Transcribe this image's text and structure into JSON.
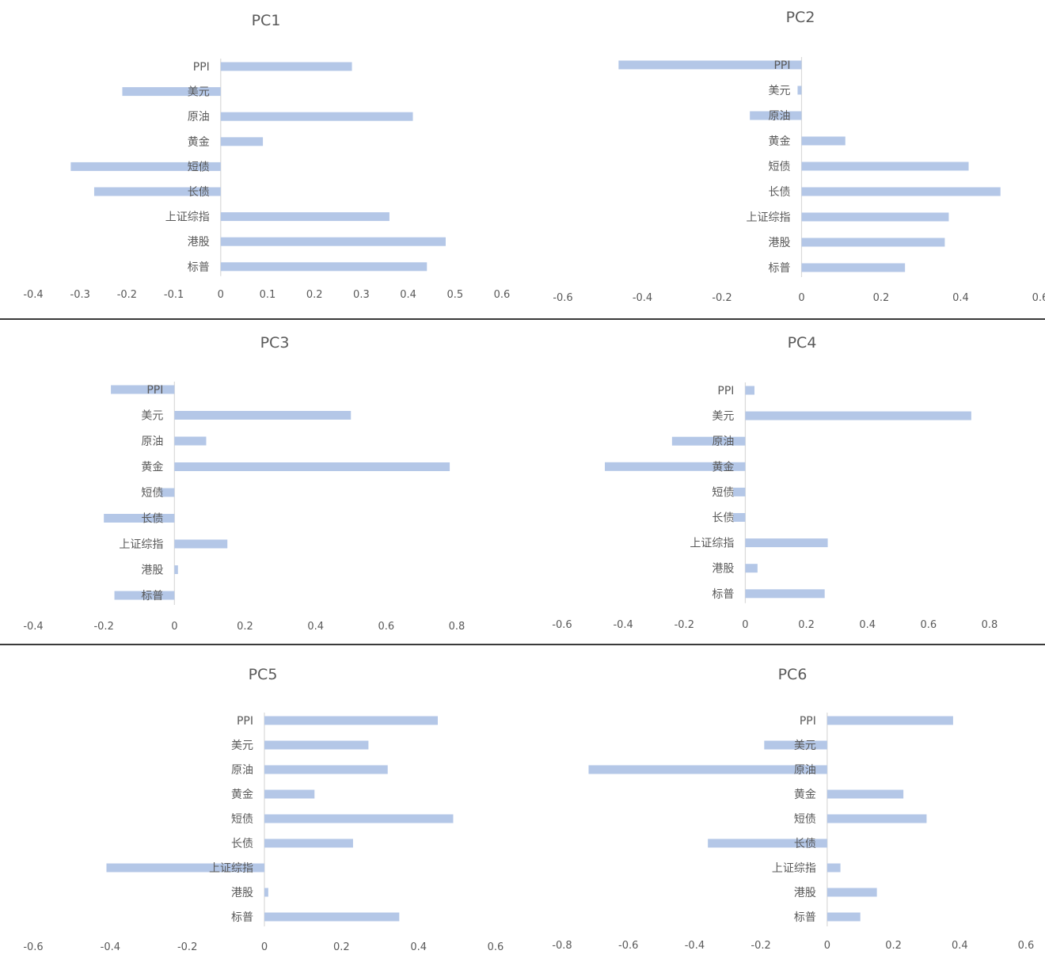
{
  "chart_data": [
    {
      "type": "bar",
      "orientation": "horizontal",
      "title": "PC1",
      "categories": [
        "PPI",
        "美元",
        "原油",
        "黄金",
        "短债",
        "长债",
        "上证综指",
        "港股",
        "标普"
      ],
      "values": [
        0.28,
        -0.21,
        0.41,
        0.09,
        -0.32,
        -0.27,
        0.36,
        0.48,
        0.44
      ],
      "xlim": [
        -0.4,
        0.6
      ],
      "xticks": [
        "-0.4",
        "-0.3",
        "-0.2",
        "-0.1",
        "0",
        "0.1",
        "0.2",
        "0.3",
        "0.4",
        "0.5",
        "0.6"
      ],
      "grid": false,
      "legend": "none",
      "bar_color": "#b4c7e7"
    },
    {
      "type": "bar",
      "orientation": "horizontal",
      "title": "PC2",
      "categories": [
        "PPI",
        "美元",
        "原油",
        "黄金",
        "短债",
        "长债",
        "上证综指",
        "港股",
        "标普"
      ],
      "values": [
        -0.46,
        -0.01,
        -0.13,
        0.11,
        0.42,
        0.5,
        0.37,
        0.36,
        0.26
      ],
      "xlim": [
        -0.6,
        0.6
      ],
      "xticks": [
        "-0.6",
        "-0.4",
        "-0.2",
        "0",
        "0.2",
        "0.4",
        "0.6"
      ],
      "grid": false,
      "legend": "none",
      "bar_color": "#b4c7e7"
    },
    {
      "type": "bar",
      "orientation": "horizontal",
      "title": "PC3",
      "categories": [
        "PPI",
        "美元",
        "原油",
        "黄金",
        "短债",
        "长债",
        "上证综指",
        "港股",
        "标普"
      ],
      "values": [
        -0.18,
        0.5,
        0.09,
        0.78,
        -0.04,
        -0.2,
        0.15,
        0.01,
        -0.17
      ],
      "xlim": [
        -0.4,
        0.8
      ],
      "xticks": [
        "-0.4",
        "-0.2",
        "0",
        "0.2",
        "0.4",
        "0.6",
        "0.8"
      ],
      "grid": false,
      "legend": "none",
      "bar_color": "#b4c7e7"
    },
    {
      "type": "bar",
      "orientation": "horizontal",
      "title": "PC4",
      "categories": [
        "PPI",
        "美元",
        "原油",
        "黄金",
        "短债",
        "长债",
        "上证综指",
        "港股",
        "标普"
      ],
      "values": [
        0.03,
        0.74,
        -0.24,
        -0.46,
        -0.04,
        -0.04,
        0.27,
        0.04,
        0.26
      ],
      "xlim": [
        -0.6,
        0.8
      ],
      "xticks": [
        "-0.6",
        "-0.4",
        "-0.2",
        "0",
        "0.2",
        "0.4",
        "0.6",
        "0.8"
      ],
      "grid": false,
      "legend": "none",
      "bar_color": "#b4c7e7"
    },
    {
      "type": "bar",
      "orientation": "horizontal",
      "title": "PC5",
      "categories": [
        "PPI",
        "美元",
        "原油",
        "黄金",
        "短债",
        "长债",
        "上证综指",
        "港股",
        "标普"
      ],
      "values": [
        0.45,
        0.27,
        0.32,
        0.13,
        0.49,
        0.23,
        -0.41,
        0.01,
        0.35
      ],
      "xlim": [
        -0.6,
        0.6
      ],
      "xticks": [
        "-0.6",
        "-0.4",
        "-0.2",
        "0",
        "0.2",
        "0.4",
        "0.6"
      ],
      "grid": false,
      "legend": "none",
      "bar_color": "#b4c7e7"
    },
    {
      "type": "bar",
      "orientation": "horizontal",
      "title": "PC6",
      "categories": [
        "PPI",
        "美元",
        "原油",
        "黄金",
        "短债",
        "长债",
        "上证综指",
        "港股",
        "标普"
      ],
      "values": [
        0.38,
        -0.19,
        -0.72,
        0.23,
        0.3,
        -0.36,
        0.04,
        0.15,
        0.1
      ],
      "xlim": [
        -0.8,
        0.6
      ],
      "xticks": [
        "-0.8",
        "-0.6",
        "-0.4",
        "-0.2",
        "0",
        "0.2",
        "0.4",
        "0.6"
      ],
      "grid": false,
      "legend": "none",
      "bar_color": "#b4c7e7"
    }
  ],
  "colors": {
    "bar": "#b4c7e7",
    "axis": "#d9d9d9",
    "text": "#595959",
    "divider": "#3a3a3a"
  }
}
